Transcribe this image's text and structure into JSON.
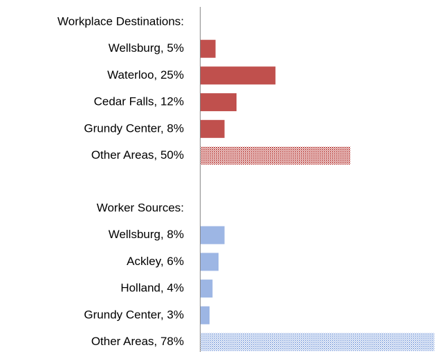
{
  "chart_data": {
    "type": "bar",
    "xlim": [
      0,
      78
    ],
    "groups": [
      {
        "title": "Workplace Destinations:",
        "color": "#c0504d",
        "categories": [
          "Wellsburg, 5%",
          "Waterloo, 25%",
          "Cedar Falls, 12%",
          "Grundy Center, 8%",
          "Other Areas, 50%"
        ],
        "values": [
          5,
          25,
          12,
          8,
          50
        ],
        "hatched": [
          false,
          false,
          false,
          false,
          true
        ]
      },
      {
        "title": "Worker Sources:",
        "color": "#9db6e4",
        "categories": [
          "Wellsburg, 8%",
          "Ackley, 6%",
          "Holland, 4%",
          "Grundy Center, 3%",
          "Other Areas, 78%"
        ],
        "values": [
          8,
          6,
          4,
          3,
          78
        ],
        "hatched": [
          false,
          false,
          false,
          false,
          true
        ]
      }
    ]
  }
}
